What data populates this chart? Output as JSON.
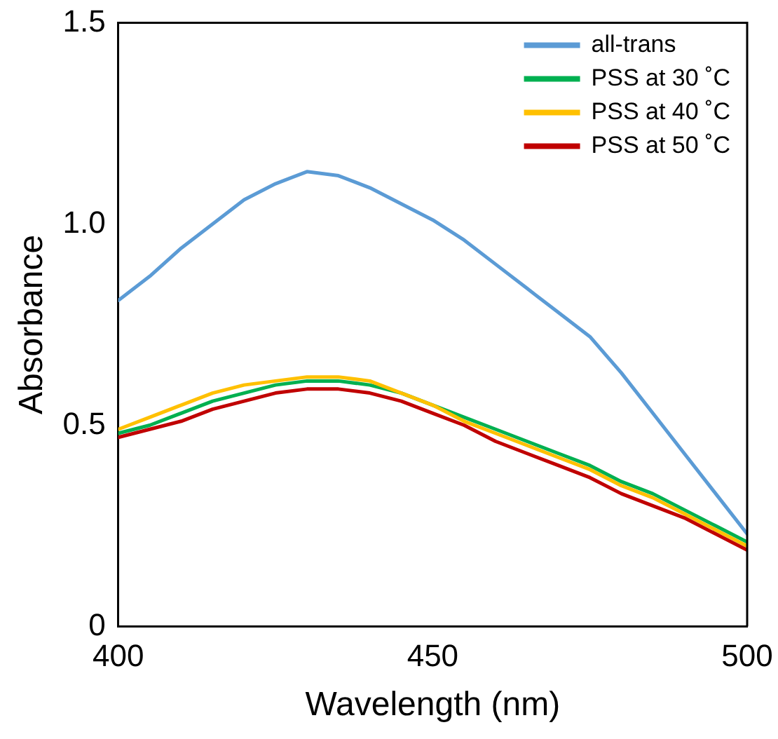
{
  "chart_data": {
    "type": "line",
    "xlabel": "Wavelength (nm)",
    "ylabel": "Absorbance",
    "x": [
      400,
      405,
      410,
      415,
      420,
      425,
      430,
      435,
      440,
      445,
      450,
      455,
      460,
      465,
      470,
      475,
      480,
      485,
      490,
      495,
      500
    ],
    "series": [
      {
        "name": "all-trans",
        "color": "#5b9bd5",
        "values": [
          0.81,
          0.87,
          0.94,
          1.0,
          1.06,
          1.1,
          1.13,
          1.12,
          1.09,
          1.05,
          1.01,
          0.96,
          0.9,
          0.84,
          0.78,
          0.72,
          0.63,
          0.53,
          0.43,
          0.33,
          0.23
        ]
      },
      {
        "name": "PSS at 30 ˚C",
        "color": "#00b050",
        "values": [
          0.48,
          0.5,
          0.53,
          0.56,
          0.58,
          0.6,
          0.61,
          0.61,
          0.6,
          0.58,
          0.55,
          0.52,
          0.49,
          0.46,
          0.43,
          0.4,
          0.36,
          0.33,
          0.29,
          0.25,
          0.21
        ]
      },
      {
        "name": "PSS at 40 ˚C",
        "color": "#ffc000",
        "values": [
          0.49,
          0.52,
          0.55,
          0.58,
          0.6,
          0.61,
          0.62,
          0.62,
          0.61,
          0.58,
          0.55,
          0.51,
          0.48,
          0.45,
          0.42,
          0.39,
          0.35,
          0.32,
          0.28,
          0.24,
          0.2
        ]
      },
      {
        "name": "PSS at 50 ˚C",
        "color": "#c00000",
        "values": [
          0.47,
          0.49,
          0.51,
          0.54,
          0.56,
          0.58,
          0.59,
          0.59,
          0.58,
          0.56,
          0.53,
          0.5,
          0.46,
          0.43,
          0.4,
          0.37,
          0.33,
          0.3,
          0.27,
          0.23,
          0.19
        ]
      }
    ],
    "xlim": [
      400,
      500
    ],
    "xticks": [
      400,
      450,
      500
    ],
    "ylim": [
      0,
      1.5
    ],
    "yticks": [
      0,
      {
        "value": 0.5,
        "label": "0.5"
      },
      {
        "value": 1,
        "label": "1.0"
      },
      1.5
    ],
    "grid": false,
    "legend": "top right",
    "marker": "none",
    "line_style": "solid"
  }
}
